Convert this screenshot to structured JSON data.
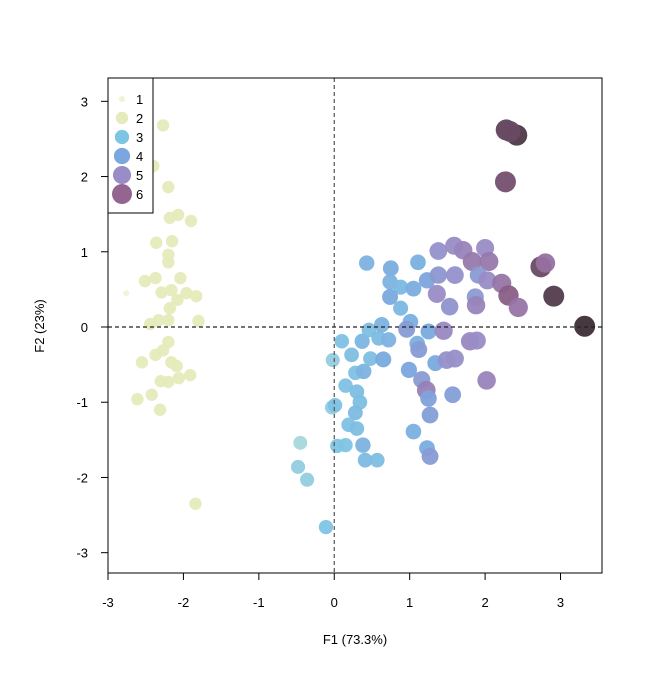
{
  "chart_data": {
    "type": "scatter",
    "title": "",
    "xlabel": "F1 (73.3%)",
    "ylabel": "F2 (23%)",
    "xlim": [
      -3.0,
      3.55
    ],
    "ylim": [
      -3.27,
      3.31
    ],
    "xticks": [
      "-3",
      "-2",
      "-1",
      "0",
      "1",
      "2",
      "3"
    ],
    "yticks": [
      "-3",
      "-2",
      "-1",
      "0",
      "1",
      "2",
      "3"
    ],
    "reference_lines": {
      "x": 0,
      "y": 0,
      "style": "dashed"
    },
    "grid": false,
    "legend": {
      "position": "top-left",
      "entries": [
        {
          "label": "1",
          "level": 1,
          "color": "#f3f1d6"
        },
        {
          "label": "2",
          "level": 2,
          "color": "#e6ebbc"
        },
        {
          "label": "3",
          "level": 3,
          "color": "#7ec4e3"
        },
        {
          "label": "4",
          "level": 4,
          "color": "#7aa7de"
        },
        {
          "label": "5",
          "level": 5,
          "color": "#9a8cc6"
        },
        {
          "label": "6",
          "level": 6,
          "color": "#946591"
        }
      ]
    },
    "points": [
      {
        "x": -2.27,
        "y": 2.68,
        "level": 2
      },
      {
        "x": -2.4,
        "y": 2.14,
        "level": 2
      },
      {
        "x": -2.2,
        "y": 1.86,
        "level": 2
      },
      {
        "x": -2.07,
        "y": 1.49,
        "level": 2
      },
      {
        "x": -2.18,
        "y": 1.45,
        "level": 2
      },
      {
        "x": -1.9,
        "y": 1.41,
        "level": 2
      },
      {
        "x": -2.36,
        "y": 1.12,
        "level": 2
      },
      {
        "x": -2.15,
        "y": 1.14,
        "level": 2
      },
      {
        "x": -2.2,
        "y": 0.96,
        "level": 2
      },
      {
        "x": -2.2,
        "y": 0.86,
        "level": 2
      },
      {
        "x": -2.51,
        "y": 0.61,
        "level": 2
      },
      {
        "x": -2.37,
        "y": 0.65,
        "level": 2
      },
      {
        "x": -2.04,
        "y": 0.65,
        "level": 2
      },
      {
        "x": -2.29,
        "y": 0.46,
        "level": 2
      },
      {
        "x": -2.16,
        "y": 0.49,
        "level": 2
      },
      {
        "x": -1.96,
        "y": 0.45,
        "level": 2
      },
      {
        "x": -1.83,
        "y": 0.41,
        "level": 2
      },
      {
        "x": -2.08,
        "y": 0.36,
        "level": 2
      },
      {
        "x": -2.18,
        "y": 0.25,
        "level": 2
      },
      {
        "x": -2.33,
        "y": 0.09,
        "level": 2
      },
      {
        "x": -2.44,
        "y": 0.04,
        "level": 2
      },
      {
        "x": -2.2,
        "y": 0.09,
        "level": 2
      },
      {
        "x": -1.8,
        "y": 0.08,
        "level": 2
      },
      {
        "x": -2.2,
        "y": -0.2,
        "level": 2
      },
      {
        "x": -2.37,
        "y": -0.37,
        "level": 2
      },
      {
        "x": -2.27,
        "y": -0.31,
        "level": 2
      },
      {
        "x": -2.16,
        "y": -0.47,
        "level": 2
      },
      {
        "x": -2.09,
        "y": -0.52,
        "level": 2
      },
      {
        "x": -1.91,
        "y": -0.64,
        "level": 2
      },
      {
        "x": -2.3,
        "y": -0.72,
        "level": 2
      },
      {
        "x": -2.06,
        "y": -0.68,
        "level": 2
      },
      {
        "x": -2.2,
        "y": -0.73,
        "level": 2
      },
      {
        "x": -2.42,
        "y": -0.9,
        "level": 2
      },
      {
        "x": -2.61,
        "y": -0.96,
        "level": 2
      },
      {
        "x": -2.31,
        "y": -1.1,
        "level": 2
      },
      {
        "x": -1.84,
        "y": -2.35,
        "level": 2
      },
      {
        "x": -2.55,
        "y": -0.47,
        "level": 2
      },
      {
        "x": -2.76,
        "y": 0.45,
        "level": 1
      },
      {
        "x": -0.45,
        "y": -1.54,
        "level": 2.8
      },
      {
        "x": -0.48,
        "y": -1.86,
        "level": 2.9
      },
      {
        "x": -0.36,
        "y": -2.03,
        "level": 2.9
      },
      {
        "x": -0.11,
        "y": -2.66,
        "level": 3.0
      },
      {
        "x": -0.02,
        "y": -0.44,
        "level": 2.9
      },
      {
        "x": -0.03,
        "y": -1.07,
        "level": 2.9
      },
      {
        "x": 0.01,
        "y": -1.04,
        "level": 3.1
      },
      {
        "x": 0.1,
        "y": -0.19,
        "level": 3.1
      },
      {
        "x": 0.23,
        "y": -0.37,
        "level": 3.2
      },
      {
        "x": 0.28,
        "y": -0.61,
        "level": 3.1
      },
      {
        "x": 0.39,
        "y": -0.59,
        "level": 3.6
      },
      {
        "x": 0.15,
        "y": -0.78,
        "level": 3.1
      },
      {
        "x": 0.3,
        "y": -0.86,
        "level": 3.2
      },
      {
        "x": 0.34,
        "y": -1.0,
        "level": 3.2
      },
      {
        "x": 0.28,
        "y": -1.14,
        "level": 3.3
      },
      {
        "x": 0.19,
        "y": -1.3,
        "level": 3.1
      },
      {
        "x": 0.3,
        "y": -1.35,
        "level": 3.2
      },
      {
        "x": 0.04,
        "y": -1.58,
        "level": 3.0
      },
      {
        "x": 0.15,
        "y": -1.57,
        "level": 3.0
      },
      {
        "x": 0.38,
        "y": -1.57,
        "level": 3.6
      },
      {
        "x": 0.41,
        "y": -1.77,
        "level": 3.3
      },
      {
        "x": 0.57,
        "y": -1.77,
        "level": 3.2
      },
      {
        "x": 0.37,
        "y": -0.19,
        "level": 3.5
      },
      {
        "x": 0.46,
        "y": -0.04,
        "level": 3.2
      },
      {
        "x": 0.48,
        "y": -0.42,
        "level": 3.2
      },
      {
        "x": 0.59,
        "y": -0.15,
        "level": 3.3
      },
      {
        "x": 0.65,
        "y": -0.43,
        "level": 3.9
      },
      {
        "x": 0.72,
        "y": -0.17,
        "level": 3.6
      },
      {
        "x": 0.63,
        "y": 0.03,
        "level": 3.6
      },
      {
        "x": 0.43,
        "y": 0.85,
        "level": 3.6
      },
      {
        "x": 0.75,
        "y": 0.78,
        "level": 3.8
      },
      {
        "x": 1.11,
        "y": 0.86,
        "level": 3.7
      },
      {
        "x": 0.74,
        "y": 0.6,
        "level": 3.6
      },
      {
        "x": 0.88,
        "y": 0.53,
        "level": 3.4
      },
      {
        "x": 0.74,
        "y": 0.4,
        "level": 3.9
      },
      {
        "x": 0.88,
        "y": 0.25,
        "level": 3.4
      },
      {
        "x": 1.01,
        "y": 0.07,
        "level": 3.7
      },
      {
        "x": 0.96,
        "y": -0.03,
        "level": 4.4
      },
      {
        "x": 1.05,
        "y": 0.51,
        "level": 3.8
      },
      {
        "x": 1.23,
        "y": 0.62,
        "level": 4.1
      },
      {
        "x": 1.25,
        "y": -0.06,
        "level": 3.9
      },
      {
        "x": 1.1,
        "y": -0.22,
        "level": 3.7
      },
      {
        "x": 1.12,
        "y": -0.3,
        "level": 4.4
      },
      {
        "x": 1.34,
        "y": -0.48,
        "level": 3.9
      },
      {
        "x": 0.99,
        "y": -0.57,
        "level": 4.0
      },
      {
        "x": 1.16,
        "y": -0.7,
        "level": 4.5
      },
      {
        "x": 1.22,
        "y": -0.84,
        "level": 5.3
      },
      {
        "x": 1.25,
        "y": -0.95,
        "level": 4.2
      },
      {
        "x": 1.27,
        "y": -1.17,
        "level": 4.3
      },
      {
        "x": 1.05,
        "y": -1.39,
        "level": 3.7
      },
      {
        "x": 1.23,
        "y": -1.61,
        "level": 3.8
      },
      {
        "x": 1.27,
        "y": -1.72,
        "level": 4.4
      },
      {
        "x": 1.57,
        "y": -0.9,
        "level": 4.3
      },
      {
        "x": 1.49,
        "y": -0.44,
        "level": 4.8
      },
      {
        "x": 1.6,
        "y": -0.42,
        "level": 4.9
      },
      {
        "x": 1.45,
        "y": -0.05,
        "level": 5.1
      },
      {
        "x": 1.8,
        "y": -0.19,
        "level": 5.1
      },
      {
        "x": 1.89,
        "y": -0.18,
        "level": 5.0
      },
      {
        "x": 2.02,
        "y": -0.71,
        "level": 5.2
      },
      {
        "x": 1.38,
        "y": 1.01,
        "level": 4.8
      },
      {
        "x": 1.59,
        "y": 1.08,
        "level": 5.0
      },
      {
        "x": 1.71,
        "y": 1.02,
        "level": 5.2
      },
      {
        "x": 2.0,
        "y": 1.05,
        "level": 5.0
      },
      {
        "x": 1.83,
        "y": 0.87,
        "level": 5.5
      },
      {
        "x": 2.05,
        "y": 0.87,
        "level": 5.5
      },
      {
        "x": 1.38,
        "y": 0.69,
        "level": 4.6
      },
      {
        "x": 1.6,
        "y": 0.69,
        "level": 4.8
      },
      {
        "x": 1.91,
        "y": 0.69,
        "level": 4.5
      },
      {
        "x": 2.03,
        "y": 0.62,
        "level": 5.0
      },
      {
        "x": 2.22,
        "y": 0.58,
        "level": 5.6
      },
      {
        "x": 1.36,
        "y": 0.44,
        "level": 5.0
      },
      {
        "x": 1.53,
        "y": 0.27,
        "level": 4.7
      },
      {
        "x": 1.87,
        "y": 0.4,
        "level": 4.5
      },
      {
        "x": 1.88,
        "y": 0.29,
        "level": 5.2
      },
      {
        "x": 2.31,
        "y": 0.42,
        "level": 6.2
      },
      {
        "x": 2.44,
        "y": 0.26,
        "level": 5.6
      },
      {
        "x": 2.74,
        "y": 0.8,
        "level": 6.8
      },
      {
        "x": 2.8,
        "y": 0.85,
        "level": 5.7
      },
      {
        "x": 2.91,
        "y": 0.41,
        "level": 7.2
      },
      {
        "x": 3.32,
        "y": 0.01,
        "level": 7.6
      },
      {
        "x": 2.27,
        "y": 1.93,
        "level": 6.6
      },
      {
        "x": 2.28,
        "y": 2.62,
        "level": 7.0
      },
      {
        "x": 2.42,
        "y": 2.55,
        "level": 7.3
      },
      {
        "x": 2.33,
        "y": 2.6,
        "level": 6.8
      }
    ]
  }
}
